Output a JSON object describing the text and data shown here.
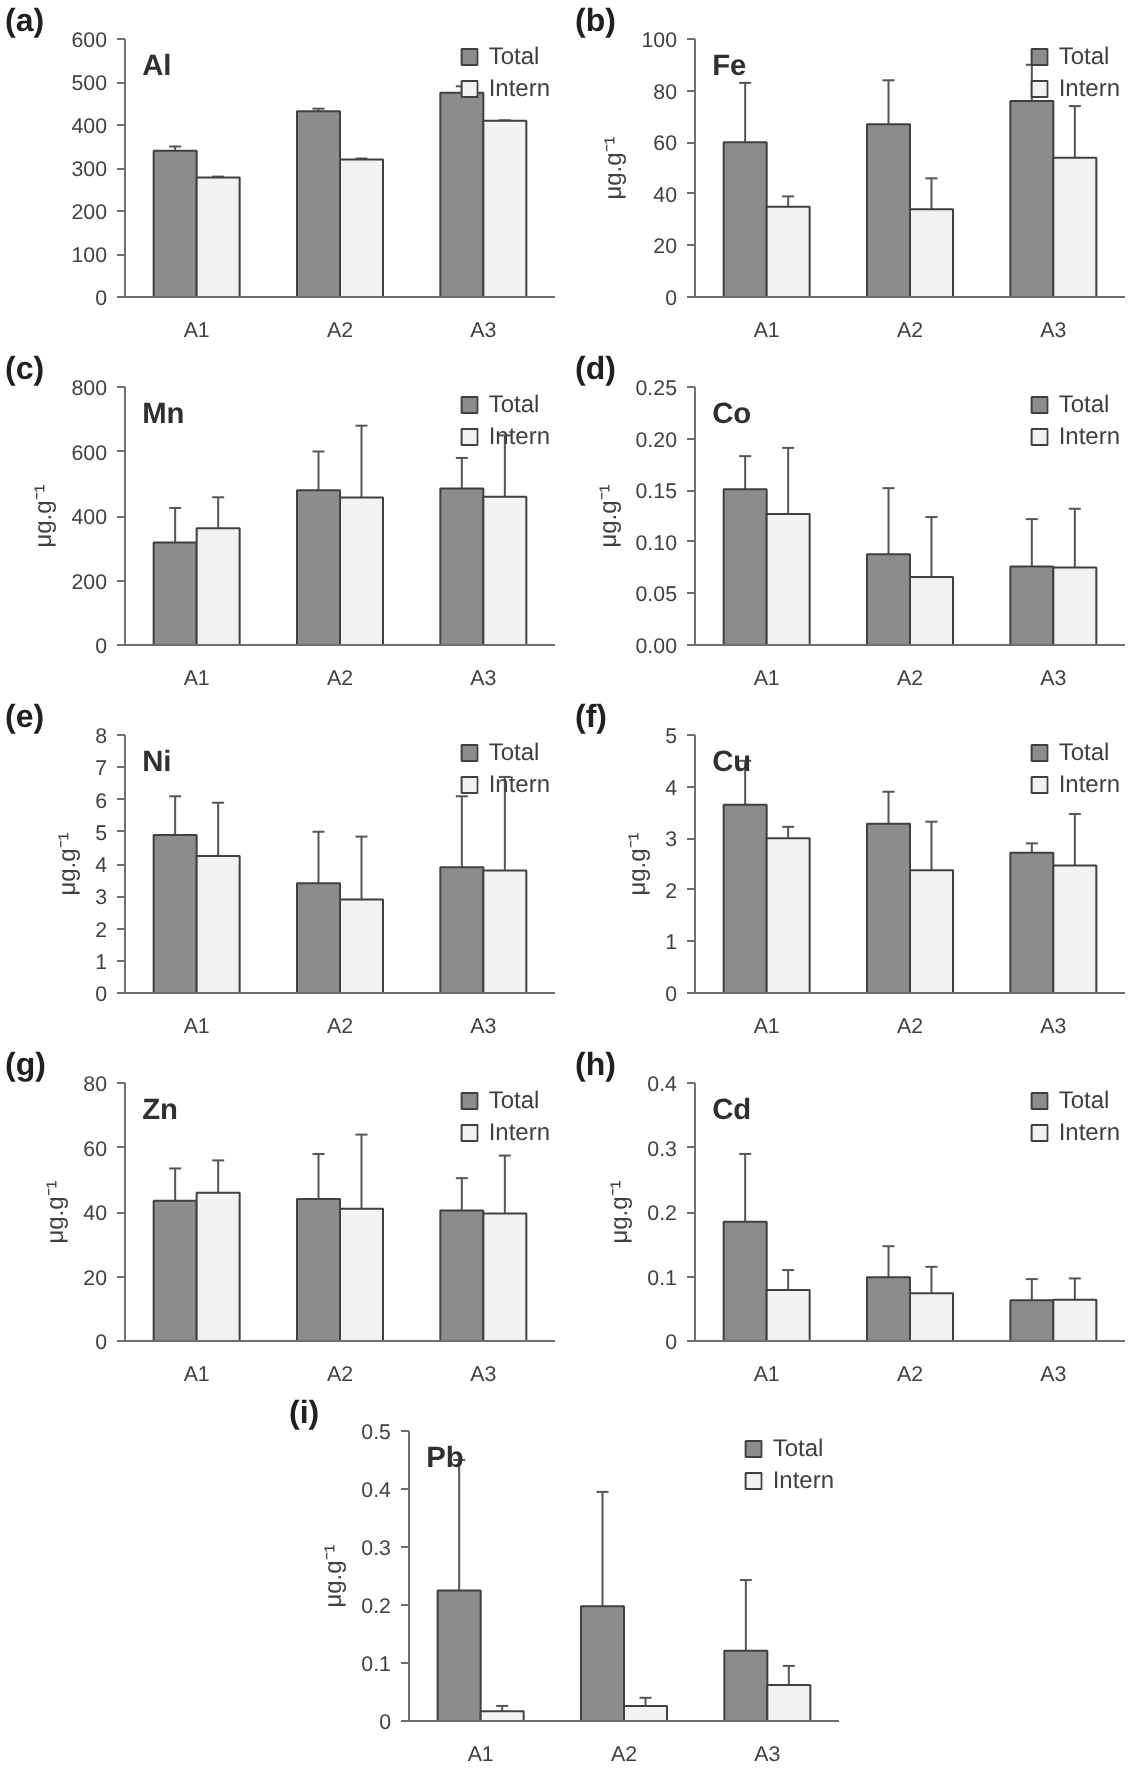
{
  "chart_data": [
    {
      "type": "bar",
      "title": "(a)",
      "subtitle": "Al",
      "categories": [
        "A1",
        "A2",
        "A3"
      ],
      "series": [
        {
          "name": "Total",
          "color": "#8c8c8c",
          "values": [
            340,
            432,
            475
          ],
          "errors": [
            [
              340,
              350
            ],
            [
              432,
              438
            ],
            [
              475,
              490
            ]
          ]
        },
        {
          "name": "Intern",
          "color": "#f2f2f2",
          "values": [
            278,
            320,
            410
          ],
          "errors": [
            [
              278,
              280
            ],
            [
              320,
              322
            ],
            [
              410,
              411
            ]
          ]
        }
      ],
      "ylim": [
        0,
        600
      ],
      "yticks": [
        0,
        100,
        200,
        300,
        400,
        500,
        600
      ],
      "grid": false,
      "legend": "top right"
    },
    {
      "type": "bar",
      "title": "(b)",
      "subtitle": "Fe",
      "ylabel": "μg.g⁻¹",
      "categories": [
        "A1",
        "A2",
        "A3"
      ],
      "series": [
        {
          "name": "Total",
          "color": "#8c8c8c",
          "values": [
            60,
            67,
            76
          ],
          "errors": [
            [
              60,
              83
            ],
            [
              67,
              84
            ],
            [
              76,
              90
            ]
          ]
        },
        {
          "name": "Intern",
          "color": "#f2f2f2",
          "values": [
            35,
            34,
            54
          ],
          "errors": [
            [
              35,
              39
            ],
            [
              34,
              46
            ],
            [
              54,
              74
            ]
          ]
        }
      ],
      "ylim": [
        0,
        100
      ],
      "yticks": [
        0,
        20,
        40,
        60,
        80,
        100
      ],
      "grid": false,
      "legend": "top right"
    },
    {
      "type": "bar",
      "title": "(c)",
      "subtitle": "Mn",
      "ylabel": "μg.g⁻¹",
      "categories": [
        "A1",
        "A2",
        "A3"
      ],
      "series": [
        {
          "name": "Total",
          "color": "#8c8c8c",
          "values": [
            318,
            480,
            485
          ],
          "errors": [
            [
              318,
              425
            ],
            [
              480,
              600
            ],
            [
              485,
              580
            ]
          ]
        },
        {
          "name": "Intern",
          "color": "#f2f2f2",
          "values": [
            362,
            457,
            460
          ],
          "errors": [
            [
              362,
              458
            ],
            [
              457,
              680
            ],
            [
              460,
              650
            ]
          ]
        }
      ],
      "ylim": [
        0,
        800
      ],
      "yticks": [
        0,
        200,
        400,
        600,
        800
      ],
      "grid": false,
      "legend": "top right"
    },
    {
      "type": "bar",
      "title": "(d)",
      "subtitle": "Co",
      "ylabel": "μg.g⁻¹",
      "categories": [
        "A1",
        "A2",
        "A3"
      ],
      "series": [
        {
          "name": "Total",
          "color": "#8c8c8c",
          "values": [
            0.151,
            0.088,
            0.076
          ],
          "errors": [
            [
              0.151,
              0.183
            ],
            [
              0.088,
              0.152
            ],
            [
              0.076,
              0.122
            ]
          ]
        },
        {
          "name": "Intern",
          "color": "#f2f2f2",
          "values": [
            0.127,
            0.066,
            0.075
          ],
          "errors": [
            [
              0.127,
              0.191
            ],
            [
              0.066,
              0.124
            ],
            [
              0.075,
              0.132
            ]
          ]
        }
      ],
      "ylim": [
        0,
        0.25
      ],
      "yticks": [
        {
          "value": 0,
          "label": "0.00"
        },
        0.05,
        {
          "value": 0.1,
          "label": "0.10"
        },
        0.15,
        {
          "value": 0.2,
          "label": "0.20"
        },
        0.25
      ],
      "grid": false,
      "legend": "top right"
    },
    {
      "type": "bar",
      "title": "(e)",
      "subtitle": "Ni",
      "ylabel": "μg.g⁻¹",
      "categories": [
        "A1",
        "A2",
        "A3"
      ],
      "series": [
        {
          "name": "Total",
          "color": "#8c8c8c",
          "values": [
            4.9,
            3.4,
            3.9
          ],
          "errors": [
            [
              4.9,
              6.1
            ],
            [
              3.4,
              5.0
            ],
            [
              3.9,
              6.1
            ]
          ]
        },
        {
          "name": "Intern",
          "color": "#f2f2f2",
          "values": [
            4.25,
            2.9,
            3.8
          ],
          "errors": [
            [
              4.25,
              5.9
            ],
            [
              2.9,
              4.85
            ],
            [
              3.8,
              6.7
            ]
          ]
        }
      ],
      "ylim": [
        0,
        8
      ],
      "yticks": [
        0,
        1,
        2,
        3,
        4,
        5,
        6,
        7,
        8
      ],
      "grid": false,
      "legend": "top right"
    },
    {
      "type": "bar",
      "title": "(f)",
      "subtitle": "Cu",
      "ylabel": "μg.g⁻¹",
      "categories": [
        "A1",
        "A2",
        "A3"
      ],
      "series": [
        {
          "name": "Total",
          "color": "#8c8c8c",
          "values": [
            3.65,
            3.28,
            2.72
          ],
          "errors": [
            [
              3.65,
              4.5
            ],
            [
              3.28,
              3.9
            ],
            [
              2.72,
              2.9
            ]
          ]
        },
        {
          "name": "Intern",
          "color": "#f2f2f2",
          "values": [
            3.0,
            2.38,
            2.47
          ],
          "errors": [
            [
              3.0,
              3.22
            ],
            [
              2.38,
              3.32
            ],
            [
              2.47,
              3.47
            ]
          ]
        }
      ],
      "ylim": [
        0,
        5
      ],
      "yticks": [
        0,
        1,
        2,
        3,
        4,
        5
      ],
      "grid": false,
      "legend": "top right"
    },
    {
      "type": "bar",
      "title": "(g)",
      "subtitle": "Zn",
      "ylabel": "μg.g⁻¹",
      "categories": [
        "A1",
        "A2",
        "A3"
      ],
      "series": [
        {
          "name": "Total",
          "color": "#8c8c8c",
          "values": [
            43.5,
            44,
            40.5
          ],
          "errors": [
            [
              43.5,
              53.5
            ],
            [
              44,
              58
            ],
            [
              40.5,
              50.5
            ]
          ]
        },
        {
          "name": "Intern",
          "color": "#f2f2f2",
          "values": [
            46,
            41,
            39.5
          ],
          "errors": [
            [
              46,
              56
            ],
            [
              41,
              64
            ],
            [
              39.5,
              57.5
            ]
          ]
        }
      ],
      "ylim": [
        0,
        80
      ],
      "yticks": [
        0,
        20,
        40,
        60,
        80
      ],
      "grid": false,
      "legend": "top right"
    },
    {
      "type": "bar",
      "title": "(h)",
      "subtitle": "Cd",
      "ylabel": "μg.g⁻¹",
      "categories": [
        "A1",
        "A2",
        "A3"
      ],
      "series": [
        {
          "name": "Total",
          "color": "#8c8c8c",
          "values": [
            0.185,
            0.099,
            0.063
          ],
          "errors": [
            [
              0.185,
              0.29
            ],
            [
              0.099,
              0.147
            ],
            [
              0.063,
              0.096
            ]
          ]
        },
        {
          "name": "Intern",
          "color": "#f2f2f2",
          "values": [
            0.079,
            0.074,
            0.064
          ],
          "errors": [
            [
              0.079,
              0.11
            ],
            [
              0.074,
              0.115
            ],
            [
              0.064,
              0.097
            ]
          ]
        }
      ],
      "ylim": [
        0,
        0.4
      ],
      "yticks": [
        0,
        0.1,
        0.2,
        0.3,
        0.4
      ],
      "grid": false,
      "legend": "top right"
    },
    {
      "type": "bar",
      "title": "(i)",
      "subtitle": "Pb",
      "ylabel": "μg.g⁻¹",
      "categories": [
        "A1",
        "A2",
        "A3"
      ],
      "series": [
        {
          "name": "Total",
          "color": "#8c8c8c",
          "values": [
            0.225,
            0.198,
            0.121
          ],
          "errors": [
            [
              0.225,
              0.45
            ],
            [
              0.198,
              0.395
            ],
            [
              0.121,
              0.243
            ]
          ]
        },
        {
          "name": "Intern",
          "color": "#f2f2f2",
          "values": [
            0.017,
            0.026,
            0.062
          ],
          "errors": [
            [
              0.017,
              0.026
            ],
            [
              0.026,
              0.04
            ],
            [
              0.062,
              0.095
            ]
          ]
        }
      ],
      "ylim": [
        0,
        0.5
      ],
      "yticks": [
        0,
        0.1,
        0.2,
        0.3,
        0.4,
        0.5
      ],
      "grid": false,
      "legend": "top right"
    }
  ]
}
